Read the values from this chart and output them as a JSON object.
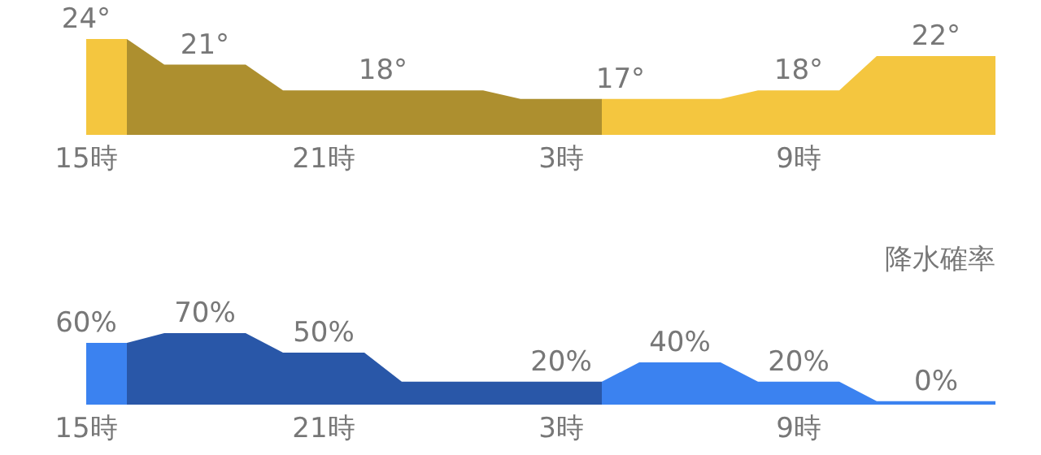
{
  "chart_data": [
    {
      "type": "area",
      "categories": [
        "15時",
        null,
        "21時",
        null,
        "3時",
        null,
        "9時",
        null
      ],
      "values": [
        24,
        21,
        18,
        18,
        17,
        17,
        18,
        22
      ],
      "colors": [
        "#f4c63f",
        "#ad8f2f",
        "#ad8f2f",
        "#ad8f2f",
        "#ad8f2f",
        "#f4c63f",
        "#f4c63f",
        "#f4c63f"
      ],
      "value_labels": [
        "24°",
        "21°",
        "18°",
        null,
        "17°",
        null,
        "18°",
        "22°"
      ]
    },
    {
      "type": "area",
      "title": "降水確率",
      "categories": [
        "15時",
        null,
        "21時",
        null,
        "3時",
        null,
        "9時",
        null
      ],
      "values": [
        60,
        70,
        50,
        20,
        20,
        40,
        20,
        0
      ],
      "colors": [
        "#3b82f0",
        "#2957a8",
        "#2957a8",
        "#2957a8",
        "#2957a8",
        "#3b82f0",
        "#3b82f0",
        "#3b82f0"
      ],
      "value_labels": [
        "60%",
        "70%",
        "50%",
        null,
        "20%",
        "40%",
        "20%",
        "0%"
      ]
    }
  ]
}
